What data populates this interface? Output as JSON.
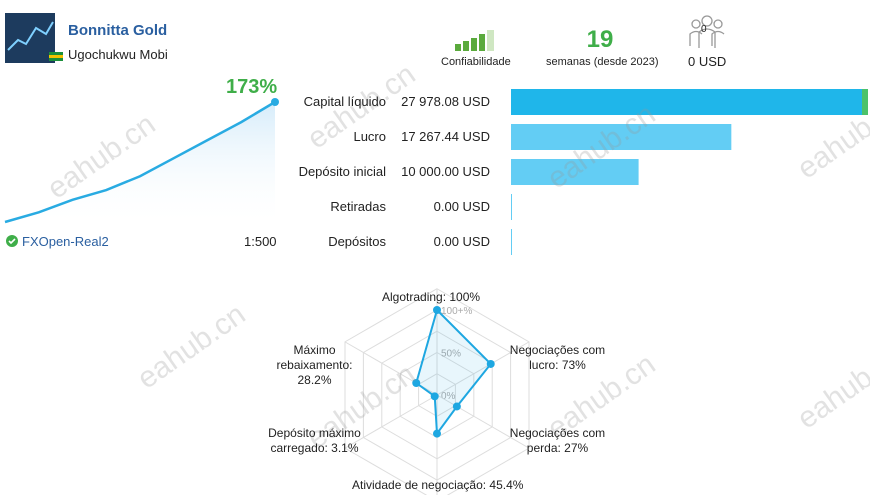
{
  "header": {
    "title": "Bonnitta Gold",
    "author": "Ugochukwu Mobi",
    "reliability_label": "Confiabilidade",
    "weeks": "19",
    "weeks_label": "semanas (desde 2023)",
    "subscribers": "0",
    "subscription_price": "0 USD"
  },
  "growth": {
    "type": "line",
    "values": [
      0,
      14,
      32,
      46,
      66,
      92,
      118,
      144,
      173
    ],
    "value_label": "173%",
    "color": "#29abe2"
  },
  "account": {
    "broker": "FXOpen-Real2",
    "leverage": "1:500"
  },
  "balance": {
    "type": "bar",
    "rows": [
      {
        "label": "Capital líquido",
        "value": 27978.08,
        "value_label": "27 978.08 USD",
        "color": "#1fb6ea"
      },
      {
        "label": "Lucro",
        "value": 17267.44,
        "value_label": "17 267.44 USD",
        "color": "#63cdf4"
      },
      {
        "label": "Depósito inicial",
        "value": 10000,
        "value_label": "10 000.00 USD",
        "color": "#63cdf4"
      },
      {
        "label": "Retiradas",
        "value": 0,
        "value_label": "0.00 USD",
        "color": "#63cdf4"
      },
      {
        "label": "Depósitos",
        "value": 0,
        "value_label": "0.00 USD",
        "color": "#63cdf4"
      }
    ]
  },
  "radar": {
    "type": "radar",
    "color": "#1ea7e1",
    "axes": [
      {
        "label": "Algotrading: 100%",
        "value": 100
      },
      {
        "label": "Negociações com lucro: 73%",
        "value": 73
      },
      {
        "label": "Negociações com perda: 27%",
        "value": 27
      },
      {
        "label": "Atividade de negociação: 45.4%",
        "value": 45.4
      },
      {
        "label": "Depósito máximo carregado: 3.1%",
        "value": 3.1
      },
      {
        "label": "Máximo rebaixamento: 28.2%",
        "value": 28.2
      }
    ],
    "ticks": [
      {
        "value": 100,
        "label": "100+%"
      },
      {
        "value": 50,
        "label": "50%"
      },
      {
        "value": 0,
        "label": "0%"
      }
    ]
  },
  "watermark": "eahub.cn"
}
